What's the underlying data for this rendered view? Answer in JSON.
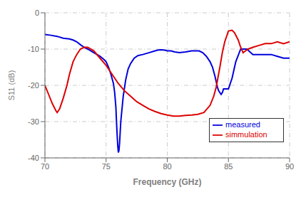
{
  "chart_data": {
    "type": "line",
    "xlabel": "Frequency (GHz)",
    "ylabel": "S11 (dB)",
    "xlim": [
      70,
      90
    ],
    "ylim": [
      -40,
      0
    ],
    "xticks": [
      70,
      75,
      80,
      85,
      90
    ],
    "yticks": [
      0,
      -10,
      -20,
      -30,
      -40
    ],
    "grid": true,
    "legend": "lower right",
    "series": [
      {
        "name": "measured",
        "color": "#0000dd",
        "x": [
          70.0,
          70.5,
          71.0,
          71.5,
          72.0,
          72.3,
          72.6,
          72.9,
          73.2,
          73.5,
          74.0,
          74.5,
          74.8,
          75.0,
          75.2,
          75.4,
          75.6,
          75.7,
          75.8,
          75.85,
          75.9,
          75.95,
          76.0,
          76.05,
          76.1,
          76.15,
          76.2,
          76.4,
          76.6,
          76.8,
          77.0,
          77.3,
          77.6,
          78.0,
          78.5,
          79.0,
          79.2,
          79.5,
          79.8,
          80.0,
          80.3,
          80.6,
          81.0,
          81.5,
          82.0,
          82.3,
          82.6,
          82.9,
          83.2,
          83.5,
          83.7,
          83.9,
          84.0,
          84.1,
          84.2,
          84.4,
          84.5,
          84.6,
          84.8,
          85.0,
          85.3,
          85.6,
          86.0,
          86.5,
          87.0,
          87.5,
          88.0,
          88.5,
          89.0,
          89.5,
          90.0
        ],
        "values": [
          -6.0,
          -6.2,
          -6.5,
          -7.0,
          -7.2,
          -7.5,
          -8.0,
          -8.8,
          -9.5,
          -10.0,
          -11.0,
          -12.0,
          -12.8,
          -13.5,
          -15.0,
          -17.0,
          -19.5,
          -22.0,
          -26.0,
          -30.0,
          -33.5,
          -36.5,
          -38.5,
          -38.0,
          -36.0,
          -33.0,
          -30.0,
          -23.0,
          -18.5,
          -15.5,
          -14.0,
          -12.5,
          -11.8,
          -11.5,
          -11.0,
          -10.5,
          -10.3,
          -10.2,
          -10.3,
          -10.5,
          -10.5,
          -10.8,
          -11.0,
          -10.8,
          -10.5,
          -10.5,
          -10.5,
          -11.0,
          -12.0,
          -13.5,
          -15.0,
          -17.5,
          -19.0,
          -20.5,
          -21.5,
          -22.5,
          -22.0,
          -21.0,
          -21.0,
          -21.0,
          -18.0,
          -13.5,
          -10.0,
          -10.0,
          -11.5,
          -11.5,
          -11.5,
          -11.5,
          -12.0,
          -12.5,
          -12.5
        ]
      },
      {
        "name": "simmulation",
        "color": "#dd0000",
        "x": [
          70.0,
          70.3,
          70.6,
          70.9,
          71.0,
          71.2,
          71.5,
          71.8,
          72.0,
          72.3,
          72.6,
          72.9,
          73.2,
          73.5,
          74.0,
          74.5,
          75.0,
          75.5,
          76.0,
          76.5,
          77.0,
          77.5,
          78.0,
          78.5,
          79.0,
          79.5,
          80.0,
          80.5,
          81.0,
          81.5,
          82.0,
          82.5,
          83.0,
          83.5,
          83.8,
          84.0,
          84.3,
          84.5,
          84.7,
          85.0,
          85.3,
          85.5,
          85.8,
          86.0,
          86.2,
          86.4,
          86.6,
          87.0,
          87.5,
          88.0,
          88.5,
          89.0,
          89.5,
          90.0
        ],
        "values": [
          -20.0,
          -22.5,
          -25.0,
          -27.0,
          -27.5,
          -26.5,
          -23.5,
          -20.0,
          -17.0,
          -13.5,
          -11.5,
          -10.0,
          -9.5,
          -9.5,
          -10.5,
          -12.5,
          -14.5,
          -17.0,
          -19.5,
          -21.5,
          -23.0,
          -24.5,
          -25.5,
          -26.5,
          -27.2,
          -27.8,
          -28.2,
          -28.5,
          -28.5,
          -28.3,
          -28.2,
          -28.0,
          -27.5,
          -25.5,
          -23.0,
          -20.5,
          -15.0,
          -11.0,
          -8.0,
          -5.0,
          -4.8,
          -5.5,
          -7.5,
          -9.5,
          -11.0,
          -10.5,
          -10.0,
          -9.5,
          -9.0,
          -8.5,
          -8.5,
          -8.0,
          -8.5,
          -8.0
        ]
      }
    ]
  }
}
